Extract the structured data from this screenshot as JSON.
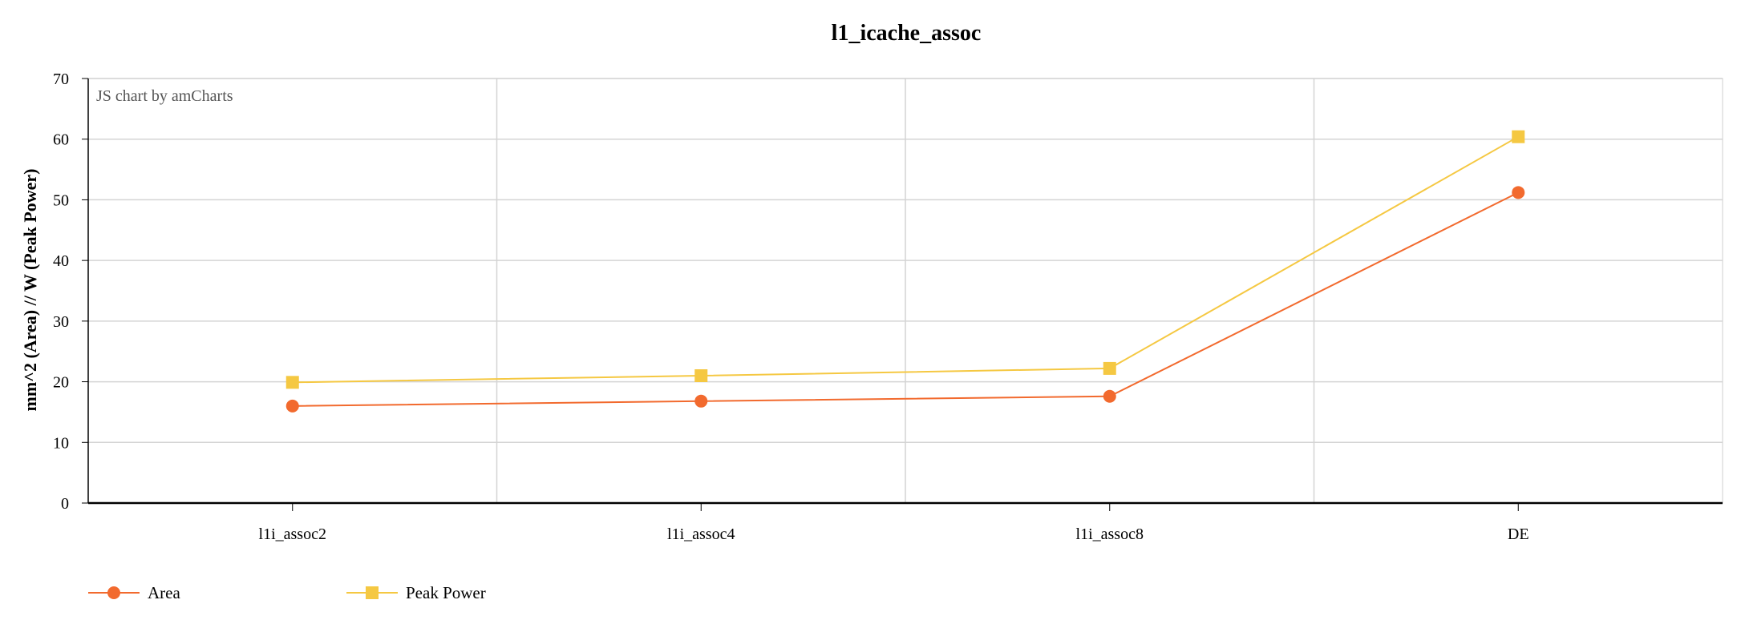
{
  "chart_data": {
    "type": "line",
    "title": "l1_icache_assoc",
    "xlabel": "",
    "ylabel": "mm^2 (Area) // W (Peak Power)",
    "credit": "JS chart by amCharts",
    "categories": [
      "l1i_assoc2",
      "l1i_assoc4",
      "l1i_assoc8",
      "DE"
    ],
    "ylim": [
      0,
      70
    ],
    "yticks": [
      "0",
      "10",
      "20",
      "30",
      "40",
      "50",
      "60",
      "70"
    ],
    "grid": true,
    "legend_position": "bottom-left",
    "series": [
      {
        "name": "Area",
        "values": [
          16.0,
          16.8,
          17.6,
          51.2
        ],
        "color": "#f26a2e",
        "marker": "circle"
      },
      {
        "name": "Peak Power",
        "values": [
          19.9,
          21.0,
          22.2,
          60.4
        ],
        "color": "#f5c842",
        "marker": "square"
      }
    ]
  }
}
